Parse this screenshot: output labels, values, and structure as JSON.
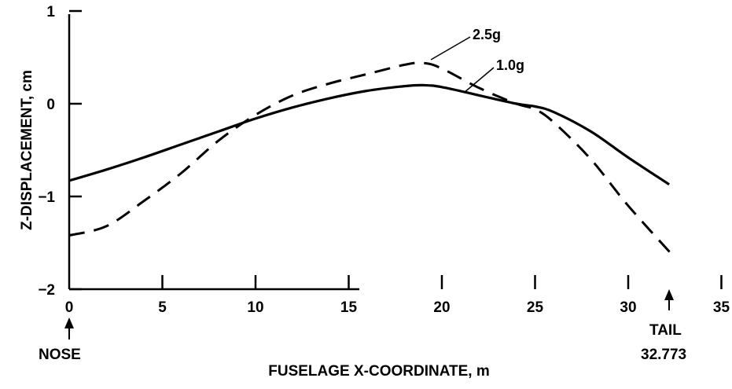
{
  "chart_data": {
    "type": "line",
    "title": "",
    "xlabel": "FUSELAGE X-COORDINATE, m",
    "ylabel": "Z-DISPLACEMENT, cm",
    "xlim": [
      0,
      35
    ],
    "ylim": [
      -2,
      1
    ],
    "x_ticks": [
      0,
      5,
      10,
      15,
      20,
      25,
      30,
      35
    ],
    "y_ticks": [
      1,
      0,
      -1,
      -2
    ],
    "x_tick_labels": [
      "0",
      "5",
      "10",
      "15",
      "20",
      "25",
      "30",
      "35"
    ],
    "y_tick_labels": [
      "1",
      "0",
      "−1",
      "−2"
    ],
    "grid": false,
    "legend": "none",
    "series": [
      {
        "name": "1.0g",
        "line_style": "solid",
        "x": [
          0,
          2,
          4,
          6,
          8,
          10,
          12,
          14,
          16,
          18,
          19,
          20,
          22,
          24,
          25,
          26,
          28,
          30,
          32.2
        ],
        "y": [
          -0.83,
          -0.71,
          -0.58,
          -0.44,
          -0.3,
          -0.16,
          -0.04,
          0.06,
          0.14,
          0.19,
          0.2,
          0.18,
          0.09,
          0.0,
          -0.03,
          -0.09,
          -0.3,
          -0.58,
          -0.87
        ]
      },
      {
        "name": "2.5g",
        "line_style": "dashed",
        "x": [
          0,
          2,
          4,
          6,
          8,
          10,
          12,
          14,
          16,
          18,
          19,
          20,
          22,
          24,
          25,
          26,
          28,
          30,
          32.5
        ],
        "y": [
          -1.42,
          -1.32,
          -1.05,
          -0.75,
          -0.4,
          -0.12,
          0.09,
          0.22,
          0.32,
          0.42,
          0.44,
          0.38,
          0.17,
          0.0,
          -0.06,
          -0.2,
          -0.6,
          -1.1,
          -1.66
        ]
      }
    ],
    "annotations": [
      {
        "id": "nose",
        "text": "NOSE",
        "x": 0
      },
      {
        "id": "tail",
        "text": "TAIL",
        "value_text": "32.773",
        "x": 32.773
      }
    ]
  }
}
